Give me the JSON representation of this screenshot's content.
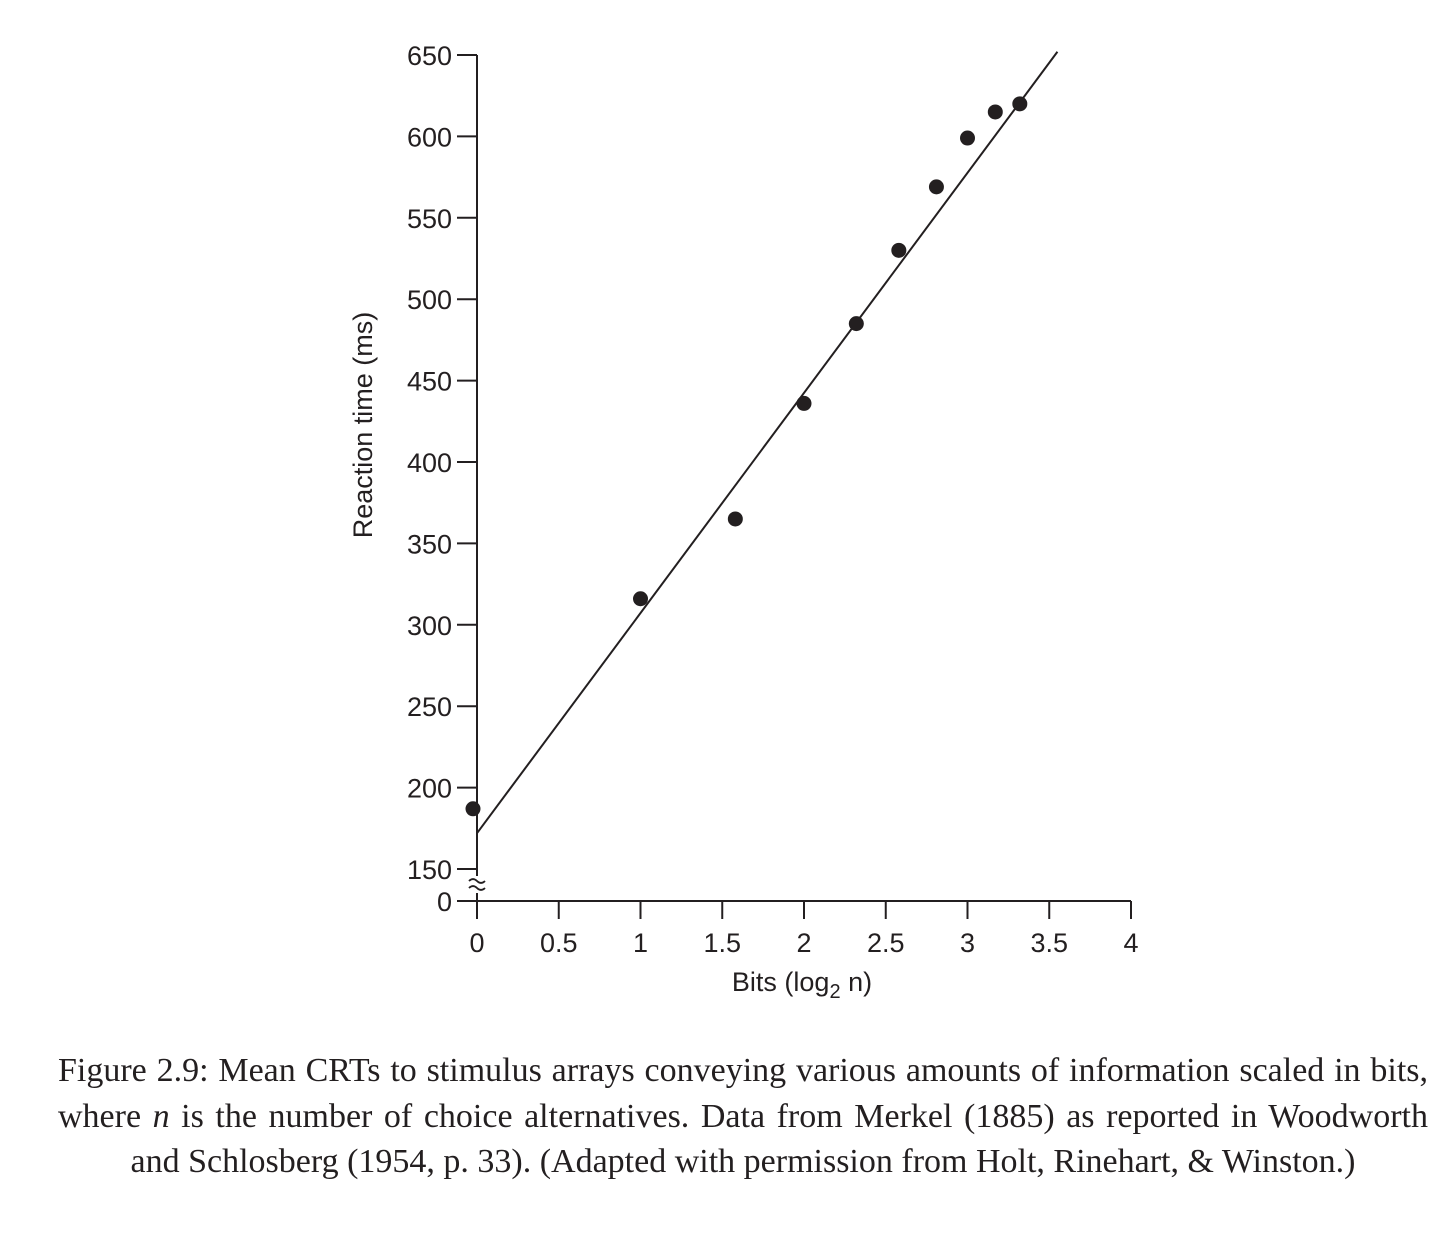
{
  "chart_data": {
    "type": "scatter",
    "xlabel": "Bits (log",
    "xlabel_subscript": "2",
    "xlabel_suffix": " n)",
    "ylabel": "Reaction time (ms)",
    "xlim": [
      0,
      4
    ],
    "ylim": [
      150,
      650
    ],
    "y_axis_break": true,
    "x_ticks": [
      "0",
      "0.5",
      "1",
      "1.5",
      "2",
      "2.5",
      "3",
      "3.5",
      "4"
    ],
    "y_ticks": [
      "0",
      "150",
      "200",
      "250",
      "300",
      "350",
      "400",
      "450",
      "500",
      "550",
      "600",
      "650"
    ],
    "points": [
      {
        "x": 0.0,
        "y": 187
      },
      {
        "x": 1.0,
        "y": 316
      },
      {
        "x": 1.58,
        "y": 365
      },
      {
        "x": 2.0,
        "y": 436
      },
      {
        "x": 2.32,
        "y": 485
      },
      {
        "x": 2.58,
        "y": 530
      },
      {
        "x": 2.81,
        "y": 569
      },
      {
        "x": 3.0,
        "y": 599
      },
      {
        "x": 3.17,
        "y": 615
      },
      {
        "x": 3.32,
        "y": 620
      }
    ],
    "fit_line": {
      "x": [
        0,
        3.55
      ],
      "y": [
        172,
        652
      ]
    },
    "grid": false,
    "legend": "none",
    "marker_color": "#231f20",
    "line_color": "#231f20"
  },
  "caption": {
    "prefix": "Figure 2.9: Mean CRTs to stimulus arrays conveying various amounts of information scaled in bits, where ",
    "variable": "n",
    "suffix": " is the number of choice alternatives. Data from Merkel (1885) as reported in Woodworth and Schlosberg (1954, p. 33). (Adapted with permission from Holt, Rinehart, & Winston.)"
  }
}
